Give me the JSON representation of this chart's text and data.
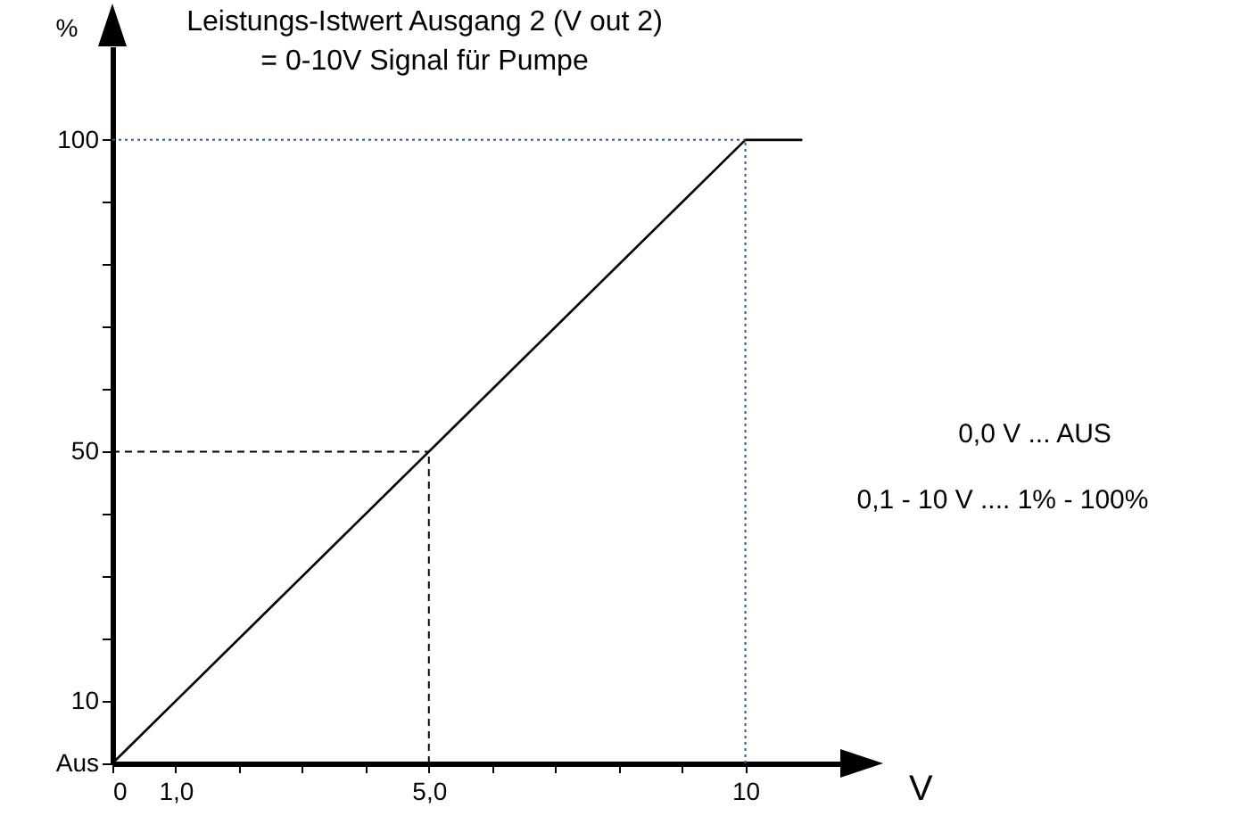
{
  "chart_data": {
    "type": "line",
    "title": "Leistungs-Istwert Ausgang 2  (V out 2)",
    "subtitle": "= 0-10V Signal für Pumpe",
    "xlabel": "V",
    "ylabel": "%",
    "x": [
      0,
      10,
      10.9
    ],
    "series": [
      {
        "color": "#000000",
        "values": [
          0,
          100,
          100
        ]
      }
    ],
    "xlim": [
      0,
      11.5
    ],
    "ylim": [
      0,
      115
    ],
    "xticks": [
      0,
      {
        "value": 1,
        "label": "1,0"
      },
      {
        "value": 2,
        "label": null
      },
      {
        "value": 3,
        "label": null
      },
      {
        "value": 4,
        "label": null
      },
      {
        "value": 5,
        "label": "5,0"
      },
      {
        "value": 6,
        "label": null
      },
      {
        "value": 7,
        "label": null
      },
      {
        "value": 8,
        "label": null
      },
      {
        "value": 9,
        "label": null
      },
      10
    ],
    "yticks": [
      {
        "value": 0,
        "label": "Aus"
      },
      10,
      {
        "value": 20,
        "label": null
      },
      {
        "value": 30,
        "label": null
      },
      {
        "value": 40,
        "label": null
      },
      50,
      {
        "value": 60,
        "label": null
      },
      {
        "value": 70,
        "label": null
      },
      {
        "value": 80,
        "label": null
      },
      {
        "value": 90,
        "label": null
      },
      100
    ],
    "ref_lines": [
      {
        "axis": "x",
        "value": 5,
        "color": "#000000",
        "line_style": "dashed"
      },
      {
        "axis": "y",
        "value": 50,
        "color": "#000000",
        "line_style": "dashed"
      },
      {
        "axis": "x",
        "value": 10,
        "color": "#3355aa",
        "line_style": "dotted"
      },
      {
        "axis": "y",
        "value": 100,
        "color": "#3355aa",
        "line_style": "dotted"
      }
    ],
    "annotations": [
      "0,0 V  ...    AUS",
      "0,1 - 10 V ....  1% - 100%"
    ],
    "marker": "none",
    "line_style": "solid"
  }
}
